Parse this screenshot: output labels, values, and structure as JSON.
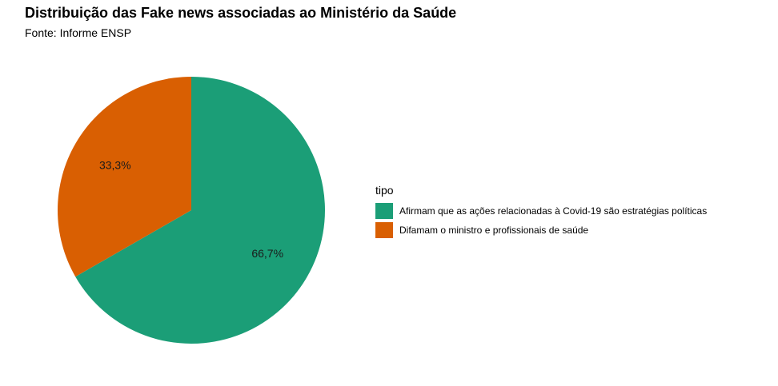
{
  "chart_data": {
    "type": "pie",
    "title": "Distribuição das Fake news associadas ao Ministério da Saúde",
    "subtitle": "Fonte: Informe ENSP",
    "legend_title": "tipo",
    "legend_position": "right",
    "slices": [
      {
        "name": "Afirmam que as ações relacionadas à Covid-19 são estratégias políticas",
        "value": 66.7,
        "label": "66,7%",
        "color": "#1b9e77"
      },
      {
        "name": "Difamam o ministro e profissionais de saúde",
        "value": 33.3,
        "label": "33,3%",
        "color": "#d95f02"
      }
    ]
  }
}
